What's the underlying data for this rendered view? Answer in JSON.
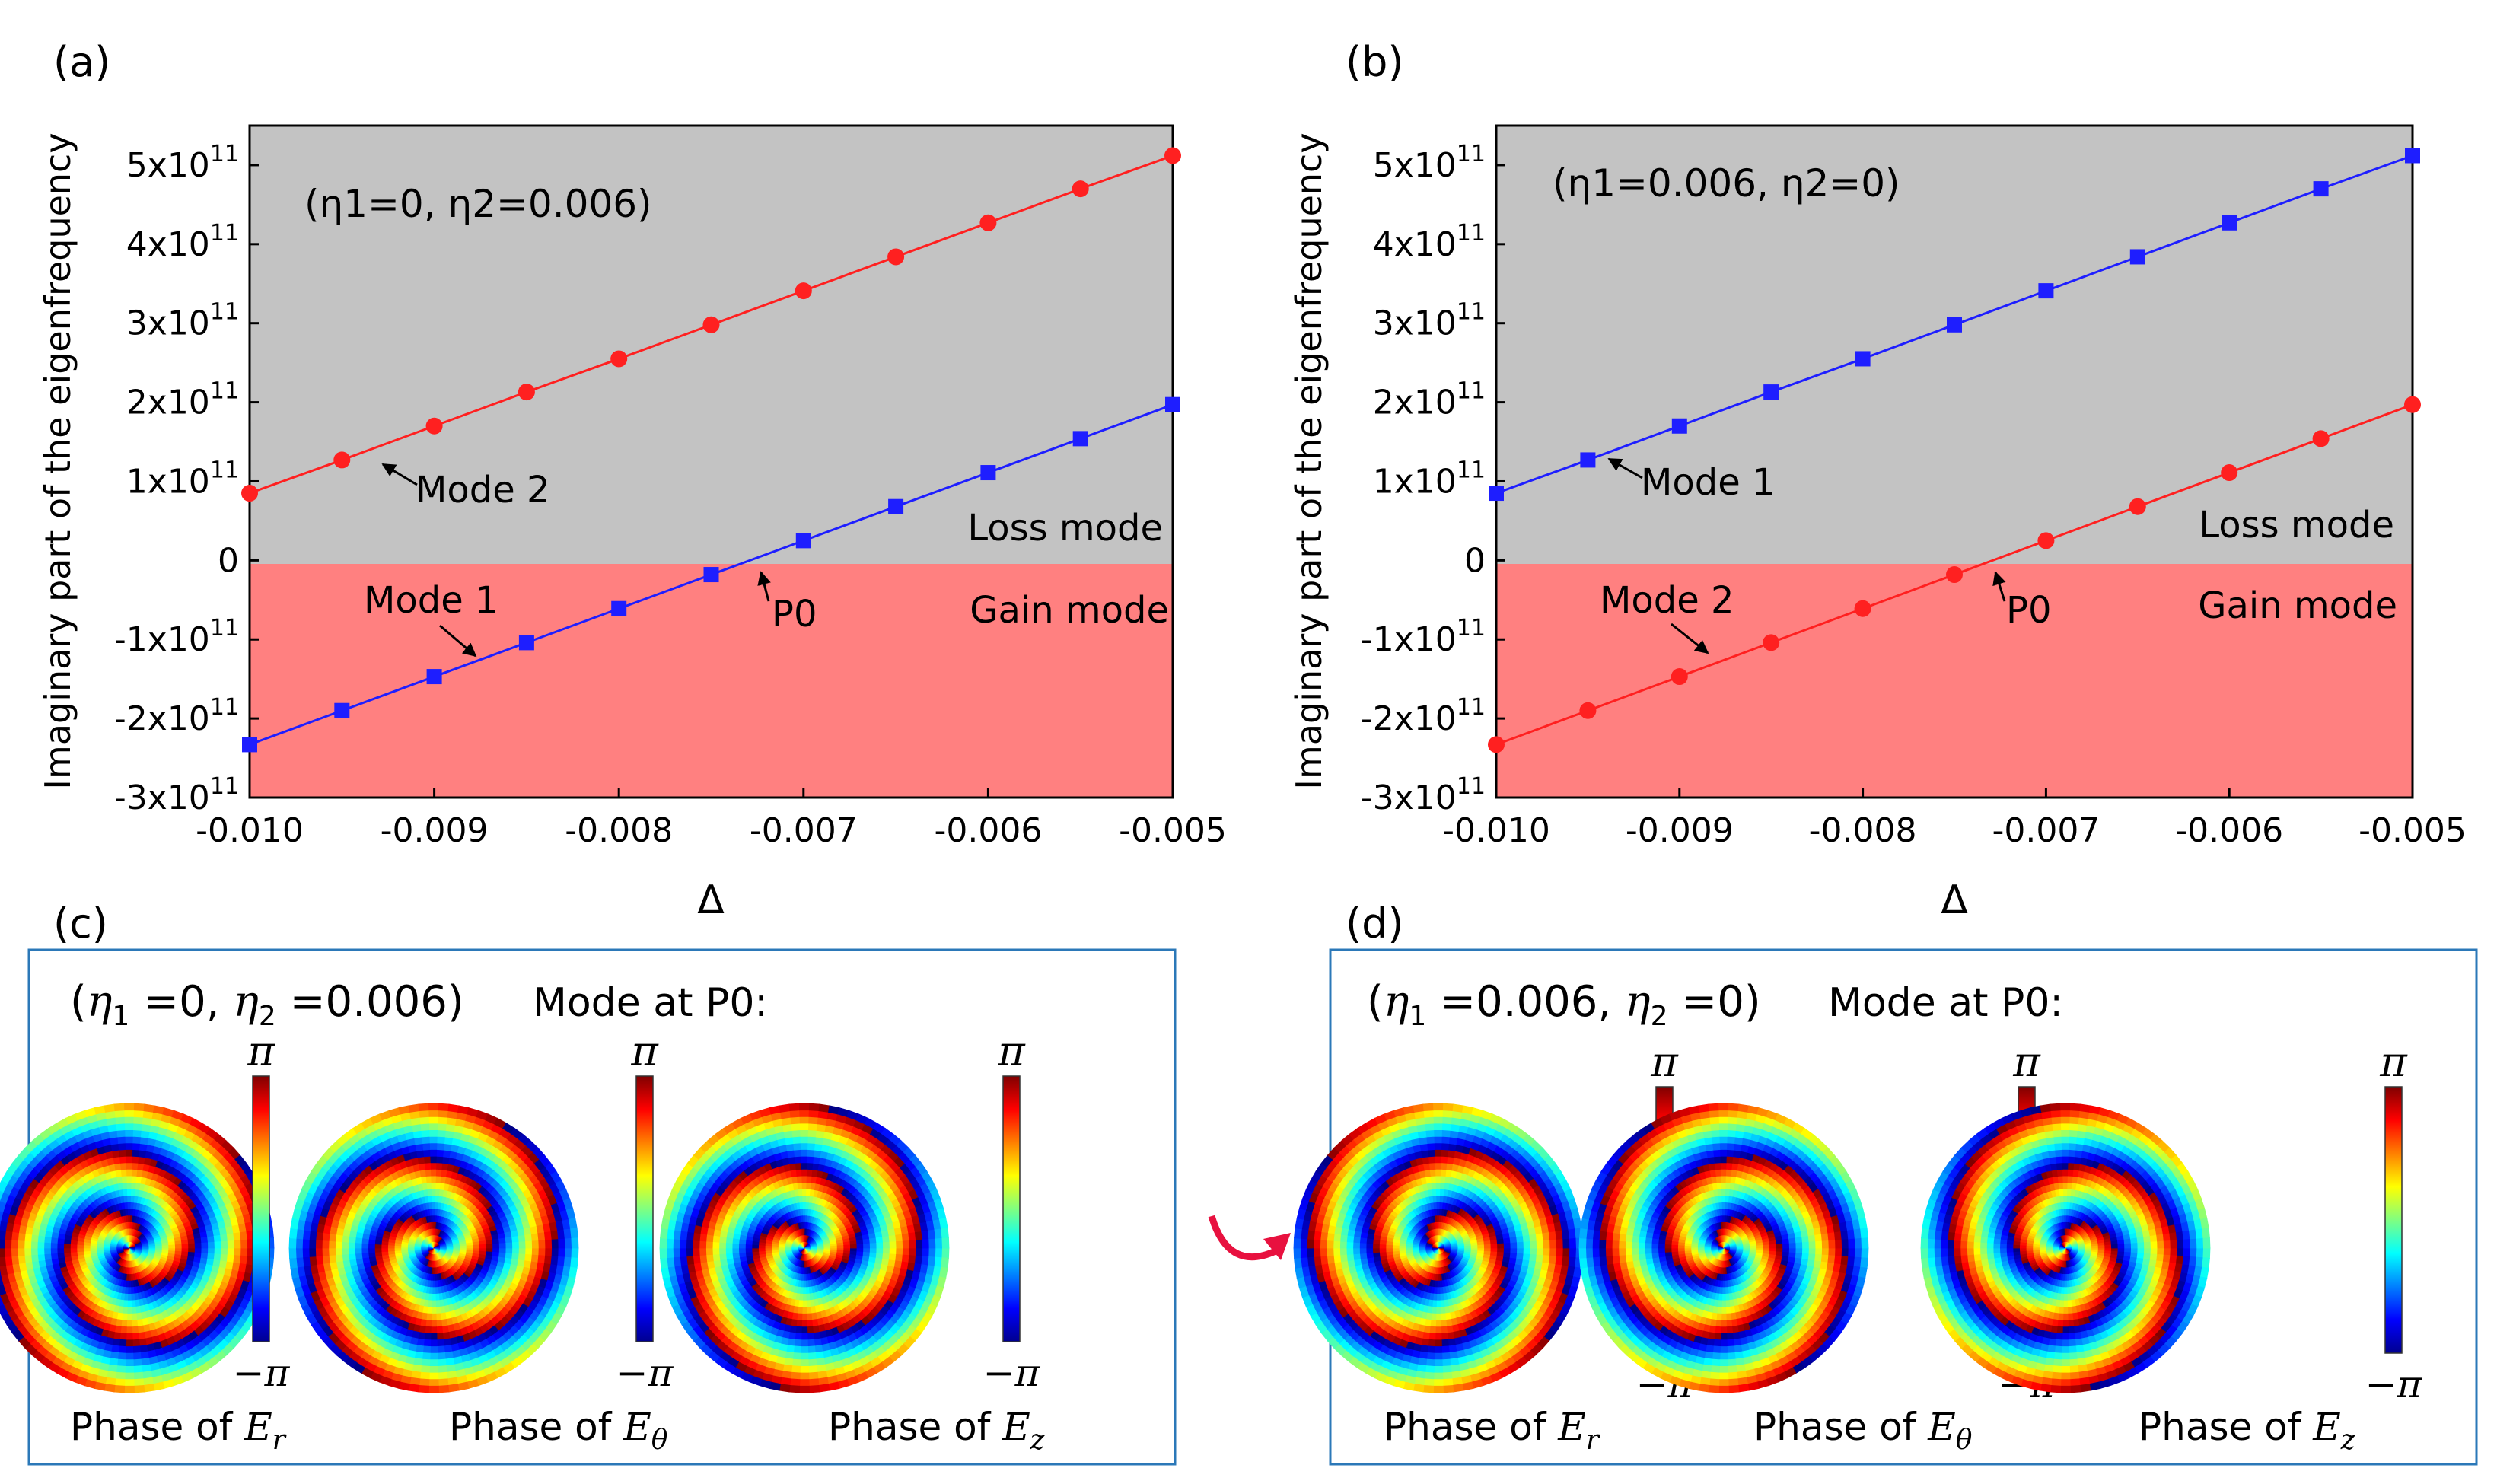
{
  "chart_data": [
    {
      "type": "line",
      "panel_label": "(a)",
      "annotation": "(η1=0, η2=0.006)",
      "xlabel": "Δ",
      "ylabel": "Imaginary part of the eigenfrequency",
      "xlim": [
        -0.01,
        -0.005
      ],
      "ylim": [
        -300000000000.0,
        550000000000.0
      ],
      "x_ticks": [
        "-0.010",
        "-0.009",
        "-0.008",
        "-0.007",
        "-0.006",
        "-0.005"
      ],
      "y_ticks": [
        {
          "mant": "-3x10",
          "exp": "11",
          "value": -300000000000.0
        },
        {
          "mant": "-2x10",
          "exp": "11",
          "value": -200000000000.0
        },
        {
          "mant": "-1x10",
          "exp": "11",
          "value": -100000000000.0
        },
        {
          "mant": "0",
          "exp": "",
          "value": 0
        },
        {
          "mant": "1x10",
          "exp": "11",
          "value": 100000000000.0
        },
        {
          "mant": "2x10",
          "exp": "11",
          "value": 200000000000.0
        },
        {
          "mant": "3x10",
          "exp": "11",
          "value": 300000000000.0
        },
        {
          "mant": "4x10",
          "exp": "11",
          "value": 400000000000.0
        },
        {
          "mant": "5x10",
          "exp": "11",
          "value": 500000000000.0
        }
      ],
      "region_labels": {
        "loss": "Loss mode",
        "gain": "Gain mode"
      },
      "region_colors": {
        "loss": "#c3c3c3",
        "gain": "#ff8080"
      },
      "x": [
        -0.01,
        -0.0095,
        -0.009,
        -0.0085,
        -0.008,
        -0.0075,
        -0.007,
        -0.0065,
        -0.006,
        -0.0055,
        -0.005
      ],
      "series": [
        {
          "name": "Mode 2",
          "color": "#ff2020",
          "marker": "circle",
          "values": [
            85000000000.0,
            127000000000.0,
            170000000000.0,
            213000000000.0,
            255000000000.0,
            298000000000.0,
            341000000000.0,
            384000000000.0,
            427000000000.0,
            470000000000.0,
            512000000000.0
          ]
        },
        {
          "name": "Mode 1",
          "color": "#1e1eff",
          "marker": "square",
          "values": [
            -233000000000.0,
            -190000000000.0,
            -147000000000.0,
            -104000000000.0,
            -61000000000.0,
            -18000000000.0,
            25000000000.0,
            68000000000.0,
            111000000000.0,
            154000000000.0,
            197000000000.0
          ]
        }
      ],
      "point_label": "P0"
    },
    {
      "type": "line",
      "panel_label": "(b)",
      "annotation": "(η1=0.006, η2=0)",
      "xlabel": "Δ",
      "ylabel": "Imaginary part of the eigenfrequency",
      "xlim": [
        -0.01,
        -0.005
      ],
      "ylim": [
        -300000000000.0,
        550000000000.0
      ],
      "x_ticks": [
        "-0.010",
        "-0.009",
        "-0.008",
        "-0.007",
        "-0.006",
        "-0.005"
      ],
      "y_ticks": [
        {
          "mant": "-3x10",
          "exp": "11",
          "value": -300000000000.0
        },
        {
          "mant": "-2x10",
          "exp": "11",
          "value": -200000000000.0
        },
        {
          "mant": "-1x10",
          "exp": "11",
          "value": -100000000000.0
        },
        {
          "mant": "0",
          "exp": "",
          "value": 0
        },
        {
          "mant": "1x10",
          "exp": "11",
          "value": 100000000000.0
        },
        {
          "mant": "2x10",
          "exp": "11",
          "value": 200000000000.0
        },
        {
          "mant": "3x10",
          "exp": "11",
          "value": 300000000000.0
        },
        {
          "mant": "4x10",
          "exp": "11",
          "value": 400000000000.0
        },
        {
          "mant": "5x10",
          "exp": "11",
          "value": 500000000000.0
        }
      ],
      "region_labels": {
        "loss": "Loss mode",
        "gain": "Gain mode"
      },
      "region_colors": {
        "loss": "#c3c3c3",
        "gain": "#ff8080"
      },
      "x": [
        -0.01,
        -0.0095,
        -0.009,
        -0.0085,
        -0.008,
        -0.0075,
        -0.007,
        -0.0065,
        -0.006,
        -0.0055,
        -0.005
      ],
      "series": [
        {
          "name": "Mode 1",
          "color": "#1e1eff",
          "marker": "square",
          "values": [
            85000000000.0,
            127000000000.0,
            170000000000.0,
            213000000000.0,
            255000000000.0,
            298000000000.0,
            341000000000.0,
            384000000000.0,
            427000000000.0,
            470000000000.0,
            512000000000.0
          ]
        },
        {
          "name": "Mode 2",
          "color": "#ff2020",
          "marker": "circle",
          "values": [
            -233000000000.0,
            -190000000000.0,
            -147000000000.0,
            -104000000000.0,
            -61000000000.0,
            -18000000000.0,
            25000000000.0,
            68000000000.0,
            111000000000.0,
            154000000000.0,
            197000000000.0
          ]
        }
      ],
      "point_label": "P0"
    }
  ],
  "field_panels": [
    {
      "panel_label": "(c)",
      "params": {
        "eta1_val": "0",
        "eta2_val": "0.006"
      },
      "mode_text": "Mode at P0:",
      "spiral_sense": 1,
      "maps": [
        {
          "prefix": "Phase of ",
          "sub": "r"
        },
        {
          "prefix": "Phase of ",
          "sub": "θ"
        },
        {
          "prefix": "Phase of ",
          "sub": "z"
        }
      ],
      "colorbar": {
        "max": "π",
        "min": "−π"
      }
    },
    {
      "panel_label": "(d)",
      "params": {
        "eta1_val": "0.006",
        "eta2_val": "0"
      },
      "mode_text": "Mode at P0:",
      "spiral_sense": -1,
      "maps": [
        {
          "prefix": "Phase of ",
          "sub": "r"
        },
        {
          "prefix": "Phase of ",
          "sub": "θ"
        },
        {
          "prefix": "Phase of ",
          "sub": "z"
        }
      ],
      "colorbar": {
        "max": "π",
        "min": "−π"
      }
    }
  ],
  "symbols": {
    "eta": "η",
    "field": "E"
  },
  "colors": {
    "frame": "#2b78b8",
    "flip_arrow": "#e8113f",
    "axis": "#000000"
  }
}
